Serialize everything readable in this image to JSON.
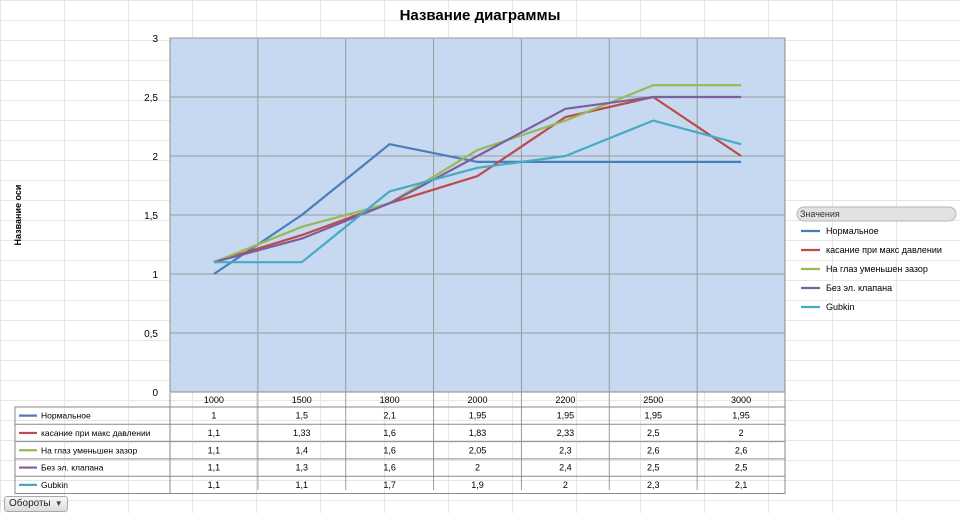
{
  "chart_data": {
    "type": "line",
    "title": "Название диаграммы",
    "ylabel": "Название оси",
    "xlabel": "",
    "categories": [
      "1000",
      "1500",
      "1800",
      "2000",
      "2200",
      "2500",
      "3000"
    ],
    "ylim": [
      0,
      3
    ],
    "yticks": [
      "0",
      "0,5",
      "1",
      "1,5",
      "2",
      "2,5",
      "3"
    ],
    "grid": true,
    "legend_title": "Значения",
    "legend_position": "right",
    "series": [
      {
        "name": "Нормальное",
        "color": "#4a7ebb",
        "values": [
          1,
          1.5,
          2.1,
          1.95,
          1.95,
          1.95,
          1.95
        ],
        "labels": [
          "1",
          "1,5",
          "2,1",
          "1,95",
          "1,95",
          "1,95",
          "1,95"
        ]
      },
      {
        "name": "касание при макс давлении",
        "color": "#be4b48",
        "values": [
          1.1,
          1.33,
          1.6,
          1.83,
          2.33,
          2.5,
          2
        ],
        "labels": [
          "1,1",
          "1,33",
          "1,6",
          "1,83",
          "2,33",
          "2,5",
          "2"
        ]
      },
      {
        "name": "На глаз уменьшен зазор",
        "color": "#98b954",
        "values": [
          1.1,
          1.4,
          1.6,
          2.05,
          2.3,
          2.6,
          2.6
        ],
        "labels": [
          "1,1",
          "1,4",
          "1,6",
          "2,05",
          "2,3",
          "2,6",
          "2,6"
        ]
      },
      {
        "name": "Без эл. клапана",
        "color": "#7d5fa0",
        "values": [
          1.1,
          1.3,
          1.6,
          2,
          2.4,
          2.5,
          2.5
        ],
        "labels": [
          "1,1",
          "1,3",
          "1,6",
          "2",
          "2,4",
          "2,5",
          "2,5"
        ]
      },
      {
        "name": "Gubkin",
        "color": "#46aac5",
        "values": [
          1.1,
          1.1,
          1.7,
          1.9,
          2,
          2.3,
          2.1
        ],
        "labels": [
          "1,1",
          "1,1",
          "1,7",
          "1,9",
          "2",
          "2,3",
          "2,1"
        ]
      }
    ]
  },
  "field_button": {
    "label": "Обороты"
  },
  "colors": {
    "plot_bg": "#c6d9f1",
    "grid": "#9a9a9a"
  }
}
